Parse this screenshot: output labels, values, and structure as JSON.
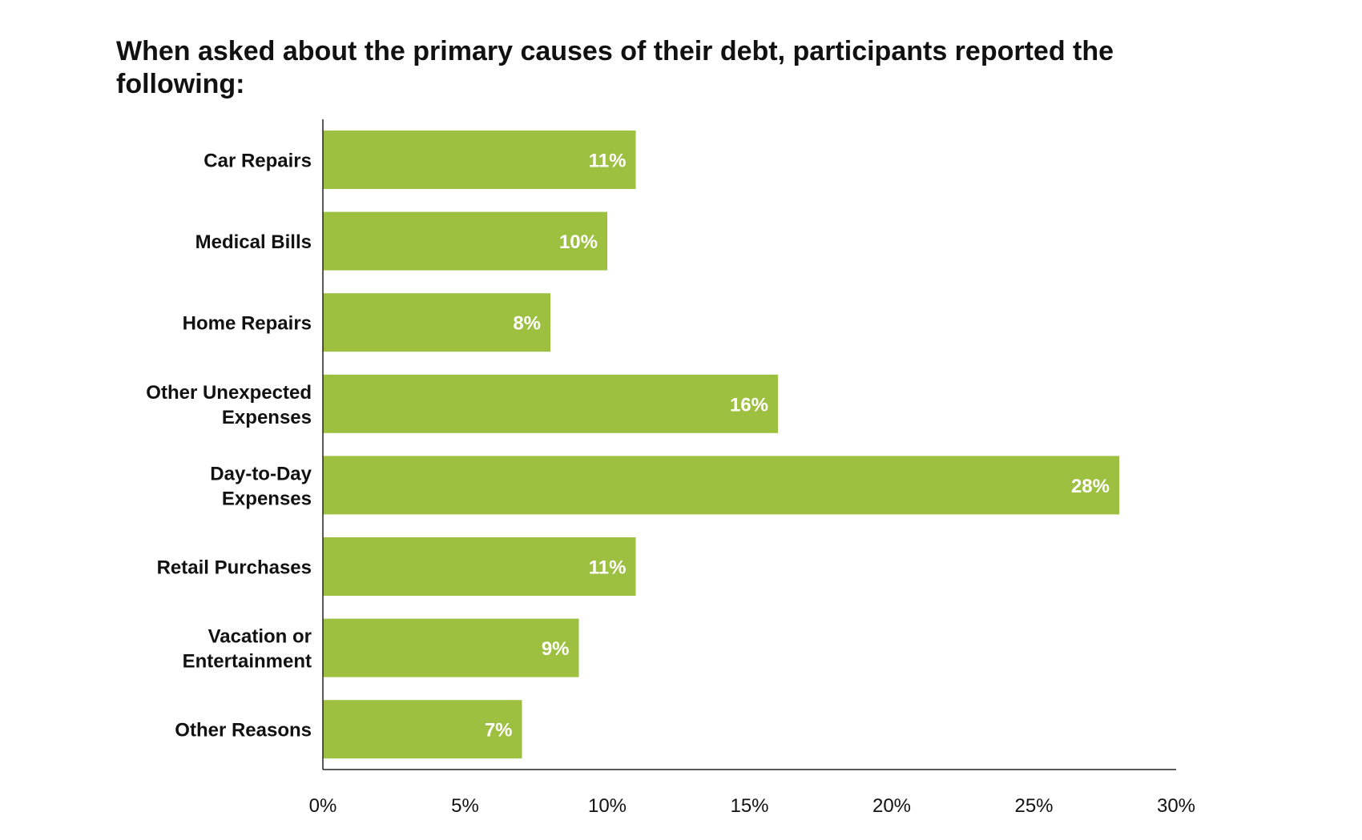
{
  "chart_data": {
    "type": "bar",
    "orientation": "horizontal",
    "title": "When asked about the primary causes of their debt, participants reported the following:",
    "categories": [
      [
        "Car Repairs"
      ],
      [
        "Medical Bills"
      ],
      [
        "Home Repairs"
      ],
      [
        "Other Unexpected",
        "Expenses"
      ],
      [
        "Day-to-Day",
        "Expenses"
      ],
      [
        "Retail Purchases"
      ],
      [
        "Vacation or",
        "Entertainment"
      ],
      [
        "Other Reasons"
      ]
    ],
    "values": [
      11,
      10,
      8,
      16,
      28,
      11,
      9,
      7
    ],
    "data_labels": [
      "11%",
      "10%",
      "8%",
      "16%",
      "28%",
      "11%",
      "9%",
      "7%"
    ],
    "xlim": [
      0,
      30
    ],
    "xticks": [
      0,
      5,
      10,
      15,
      20,
      25,
      30
    ],
    "xtick_labels": [
      "0%",
      "5%",
      "10%",
      "15%",
      "20%",
      "25%",
      "30%"
    ],
    "grid": false,
    "bar_color": "#9dc040",
    "label_color": "#ffffff"
  }
}
